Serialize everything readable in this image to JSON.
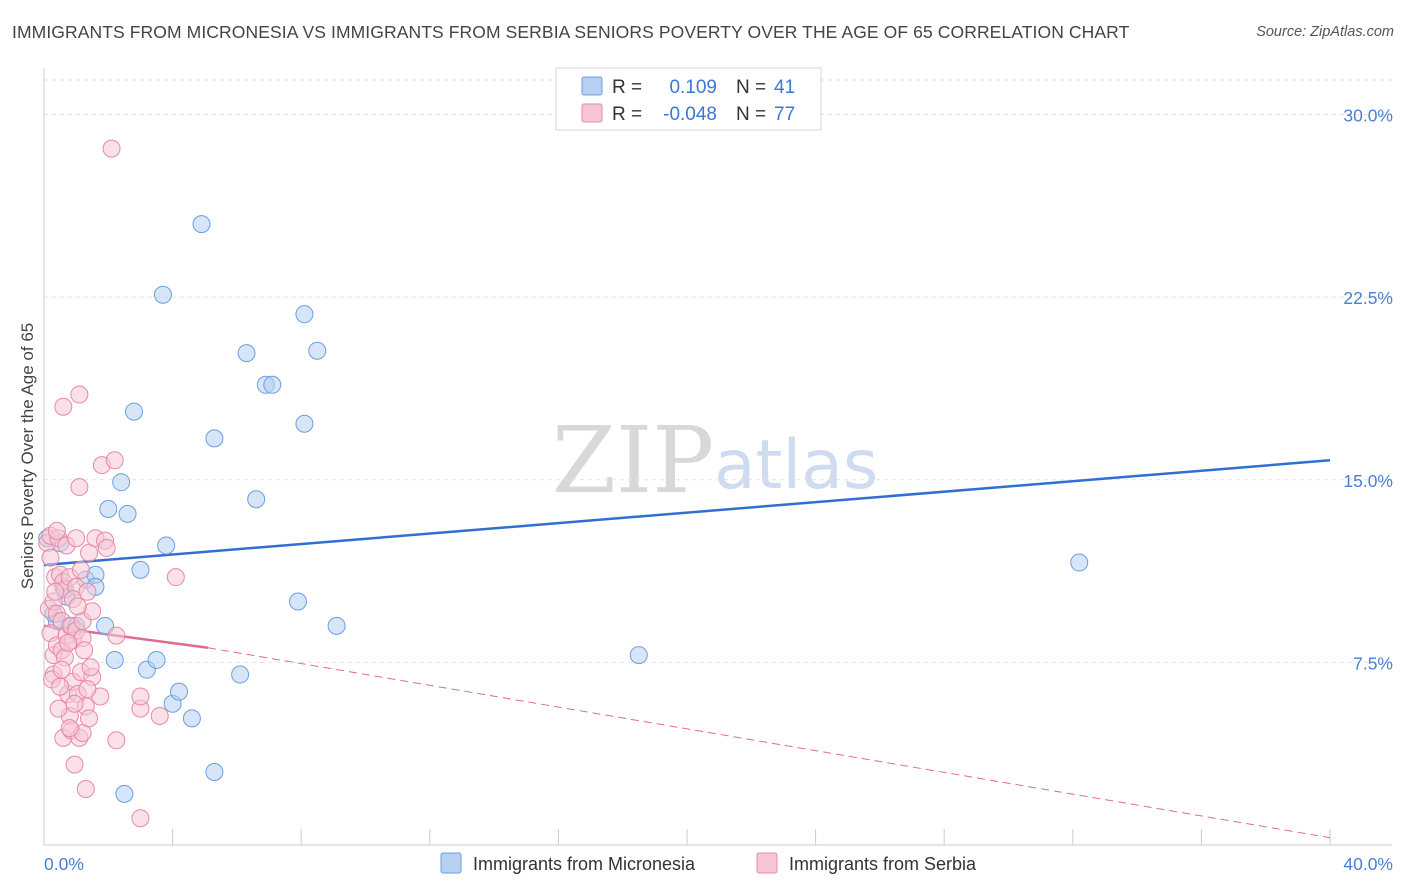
{
  "title": "IMMIGRANTS FROM MICRONESIA VS IMMIGRANTS FROM SERBIA SENIORS POVERTY OVER THE AGE OF 65 CORRELATION CHART",
  "source": "Source: ZipAtlas.com",
  "watermark": {
    "left": "ZIP",
    "right": "atlas"
  },
  "chart_data": {
    "type": "scatter",
    "title": "IMMIGRANTS FROM MICRONESIA VS IMMIGRANTS FROM SERBIA SENIORS POVERTY OVER THE AGE OF 65 CORRELATION CHART",
    "xlabel": "",
    "ylabel": "Seniors Poverty Over the Age of 65",
    "xlim": [
      0,
      40
    ],
    "ylim": [
      0,
      31.5
    ],
    "x_tick_labels": [
      {
        "value": 0,
        "label": "0.0%"
      },
      {
        "value": 40,
        "label": "40.0%"
      }
    ],
    "y_tick_labels": [
      {
        "value": 7.5,
        "label": "7.5%"
      },
      {
        "value": 15.0,
        "label": "15.0%"
      },
      {
        "value": 22.5,
        "label": "22.5%"
      },
      {
        "value": 30.0,
        "label": "30.0%"
      }
    ],
    "grid": true,
    "legend_position": "bottom-center",
    "stats": [
      {
        "r_label": "R =",
        "r_value": "0.109",
        "n_label": "N =",
        "n_value": "41"
      },
      {
        "r_label": "R =",
        "r_value": "-0.048",
        "n_label": "N =",
        "n_value": "77"
      }
    ],
    "series": [
      {
        "name": "Immigrants from Micronesia",
        "color": "#6a9fe0",
        "fill": "#b7d0f2",
        "trend": {
          "x0": 0,
          "y0": 11.5,
          "x1": 40,
          "y1": 15.8,
          "style": "solid",
          "color": "#2f6fd0"
        },
        "points": [
          [
            0.1,
            12.6
          ],
          [
            0.4,
            9.2
          ],
          [
            0.6,
            10.6
          ],
          [
            0.7,
            10.2
          ],
          [
            0.8,
            9.0
          ],
          [
            1.0,
            9.0
          ],
          [
            1.3,
            10.9
          ],
          [
            1.6,
            11.1
          ],
          [
            1.6,
            10.6
          ],
          [
            1.9,
            9.0
          ],
          [
            2.0,
            13.8
          ],
          [
            2.2,
            7.6
          ],
          [
            2.4,
            14.9
          ],
          [
            2.6,
            13.6
          ],
          [
            2.8,
            17.8
          ],
          [
            3.0,
            11.3
          ],
          [
            3.2,
            7.2
          ],
          [
            3.5,
            7.6
          ],
          [
            3.8,
            12.3
          ],
          [
            3.7,
            22.6
          ],
          [
            4.0,
            5.8
          ],
          [
            4.2,
            6.3
          ],
          [
            4.6,
            5.2
          ],
          [
            4.9,
            25.5
          ],
          [
            5.3,
            16.7
          ],
          [
            5.3,
            3.0
          ],
          [
            6.3,
            20.2
          ],
          [
            6.6,
            14.2
          ],
          [
            6.1,
            7.0
          ],
          [
            6.9,
            18.9
          ],
          [
            7.1,
            18.9
          ],
          [
            7.9,
            10.0
          ],
          [
            8.1,
            17.3
          ],
          [
            8.1,
            21.8
          ],
          [
            8.5,
            20.3
          ],
          [
            9.1,
            9.0
          ],
          [
            18.5,
            7.8
          ],
          [
            32.2,
            11.6
          ],
          [
            2.5,
            2.1
          ],
          [
            0.5,
            12.4
          ],
          [
            0.3,
            9.5
          ]
        ]
      },
      {
        "name": "Immigrants from Serbia",
        "color": "#e889a7",
        "fill": "#f6c6d5",
        "trend": {
          "x0": 0,
          "y0": 9.0,
          "x1": 5.1,
          "y1": 8.1,
          "x2": 40,
          "y2": 0.3,
          "style": "solid-then-dashed",
          "color": "#e06a92"
        },
        "points": [
          [
            0.1,
            12.4
          ],
          [
            0.2,
            12.7
          ],
          [
            0.15,
            9.7
          ],
          [
            0.2,
            8.7
          ],
          [
            0.3,
            10.0
          ],
          [
            0.3,
            7.8
          ],
          [
            0.3,
            7.0
          ],
          [
            0.35,
            11.0
          ],
          [
            0.4,
            9.5
          ],
          [
            0.4,
            8.2
          ],
          [
            0.45,
            12.6
          ],
          [
            0.5,
            11.1
          ],
          [
            0.55,
            9.2
          ],
          [
            0.55,
            8.0
          ],
          [
            0.6,
            10.8
          ],
          [
            0.6,
            4.4
          ],
          [
            0.6,
            18.0
          ],
          [
            0.65,
            10.5
          ],
          [
            0.7,
            8.6
          ],
          [
            0.7,
            12.3
          ],
          [
            0.75,
            6.2
          ],
          [
            0.8,
            11.0
          ],
          [
            0.8,
            5.3
          ],
          [
            0.85,
            9.0
          ],
          [
            0.85,
            4.7
          ],
          [
            0.9,
            8.4
          ],
          [
            0.9,
            6.7
          ],
          [
            1.0,
            12.6
          ],
          [
            0.95,
            3.3
          ],
          [
            1.0,
            10.6
          ],
          [
            1.0,
            8.8
          ],
          [
            1.05,
            6.2
          ],
          [
            1.1,
            18.5
          ],
          [
            1.1,
            14.7
          ],
          [
            1.1,
            4.4
          ],
          [
            1.15,
            7.1
          ],
          [
            1.2,
            9.2
          ],
          [
            1.2,
            8.5
          ],
          [
            1.2,
            4.6
          ],
          [
            1.3,
            5.7
          ],
          [
            1.3,
            2.3
          ],
          [
            1.35,
            10.4
          ],
          [
            1.4,
            12.0
          ],
          [
            1.4,
            5.2
          ],
          [
            1.5,
            6.9
          ],
          [
            1.5,
            9.6
          ],
          [
            1.6,
            12.6
          ],
          [
            1.75,
            6.1
          ],
          [
            1.8,
            15.6
          ],
          [
            1.9,
            12.5
          ],
          [
            1.95,
            12.2
          ],
          [
            2.1,
            28.6
          ],
          [
            2.2,
            15.8
          ],
          [
            2.25,
            8.6
          ],
          [
            2.25,
            4.3
          ],
          [
            3.0,
            5.6
          ],
          [
            3.0,
            6.1
          ],
          [
            3.0,
            1.1
          ],
          [
            3.6,
            5.3
          ],
          [
            4.1,
            11.0
          ],
          [
            0.25,
            6.8
          ],
          [
            0.45,
            5.6
          ],
          [
            0.65,
            7.7
          ],
          [
            0.95,
            5.8
          ],
          [
            1.25,
            8.0
          ],
          [
            1.45,
            7.3
          ],
          [
            0.35,
            10.4
          ],
          [
            0.5,
            6.5
          ],
          [
            0.75,
            8.3
          ],
          [
            0.9,
            10.1
          ],
          [
            1.05,
            9.8
          ],
          [
            1.15,
            11.3
          ],
          [
            0.2,
            11.8
          ],
          [
            0.55,
            7.2
          ],
          [
            0.8,
            4.8
          ],
          [
            1.35,
            6.4
          ],
          [
            0.4,
            12.9
          ]
        ]
      }
    ]
  }
}
